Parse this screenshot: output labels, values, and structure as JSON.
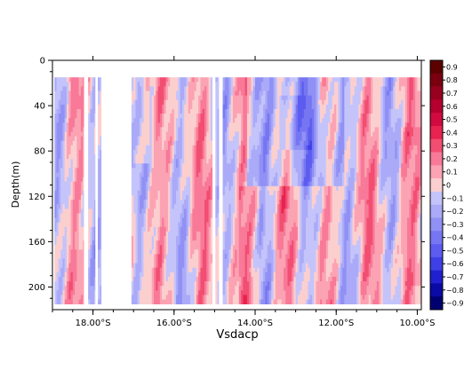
{
  "chart_data": {
    "type": "heatmap",
    "title": "Vsdacp",
    "xlabel": "",
    "ylabel": "Depth(m)",
    "x_axis": {
      "range": [
        -19.0,
        -9.9
      ],
      "direction": "latitude",
      "tick_labels": [
        {
          "value": -18.0,
          "label": "18.00°S"
        },
        {
          "value": -16.0,
          "label": "16.00°S"
        },
        {
          "value": -14.0,
          "label": "14.00°S"
        },
        {
          "value": -12.0,
          "label": "12.00°S"
        },
        {
          "value": -10.0,
          "label": "10.00°S"
        }
      ]
    },
    "y_axis": {
      "range": [
        0,
        220
      ],
      "inverted": true,
      "ticks": [
        0,
        40,
        80,
        120,
        160,
        200
      ]
    },
    "data_depth_range": [
      15,
      215
    ],
    "data_segments": [
      [
        -18.95,
        -18.23
      ],
      [
        -18.12,
        -17.95
      ],
      [
        -17.88,
        -17.8
      ],
      [
        -17.05,
        -15.06
      ],
      [
        -14.98,
        -14.9
      ],
      [
        -14.8,
        -9.92
      ]
    ],
    "colorbar": {
      "levels": [
        0.9,
        0.8,
        0.7,
        0.6,
        0.5,
        0.4,
        0.3,
        0.2,
        0.1,
        0,
        -0.1,
        -0.2,
        -0.3,
        -0.4,
        -0.5,
        -0.6,
        -0.7,
        -0.8,
        -0.9
      ],
      "labels": [
        "0.9",
        "0.8",
        "0.7",
        "0.6",
        "0.5",
        "0.4",
        "0.3",
        "0.2",
        "0.1",
        "0",
        "−0.1",
        "−0.2",
        "−0.3",
        "−0.4",
        "−0.5",
        "−0.6",
        "−0.7",
        "−0.8",
        "−0.9"
      ],
      "colors": [
        "#5c0000",
        "#7a0010",
        "#98001f",
        "#b5002f",
        "#d10a3f",
        "#e8234f",
        "#f24e72",
        "#f87998",
        "#fba3b3",
        "#fccfcf",
        "#c4c4fb",
        "#aaaaf8",
        "#9090f5",
        "#7676f2",
        "#5c5cf0",
        "#3f3fe6",
        "#2020cf",
        "#0a0aa5",
        "#000070"
      ]
    },
    "grid": false
  }
}
